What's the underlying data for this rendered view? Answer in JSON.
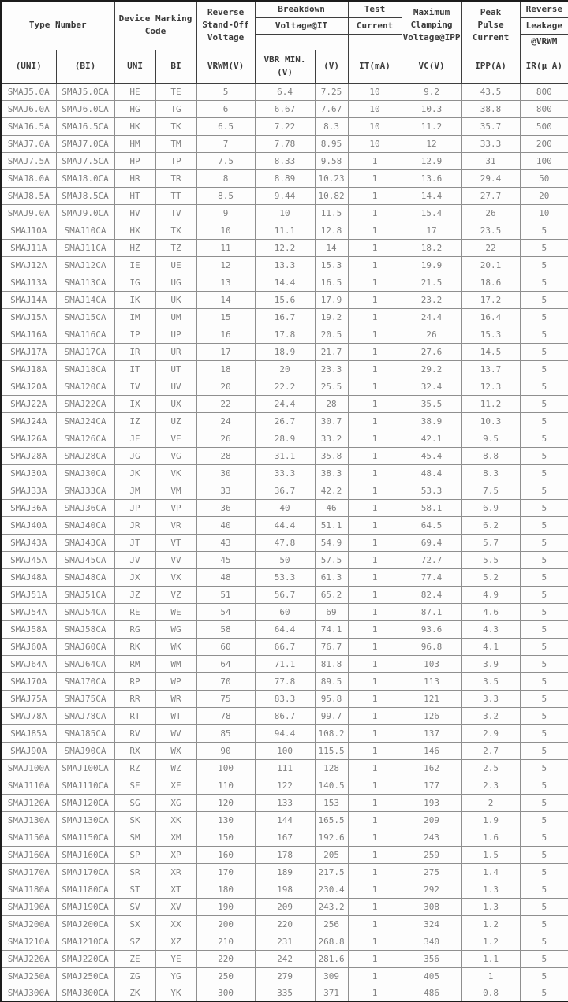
{
  "colors": {
    "frame": "#1c1c1c",
    "header_grid": "#3e3e3e",
    "data_grid": "#8f8f8f",
    "header_text": "#3a3a3a",
    "data_text": "#7f7f7f",
    "background": "#fdfdfd"
  },
  "header": {
    "type_number": "Type Number",
    "device_marking_code": "Device Marking\nCode",
    "reverse_standoff": "Reverse\nStand-Off\nVoltage",
    "breakdown": "Breakdown",
    "voltage_at_it": "Voltage@IT",
    "test": "Test",
    "current": "Current",
    "max_clamping": "Maximum\nClamping\nVoltage@IPP",
    "peak_pulse": "Peak\nPulse\nCurrent",
    "reverse": "Reverse",
    "leakage": "Leakage",
    "at_vrwm": "@VRWM",
    "sub": [
      "(UNI)",
      "(BI)",
      "UNI",
      "BI",
      "VRWM(V)",
      "VBR MIN.\n(V)",
      "(V)",
      "IT(mA)",
      "VC(V)",
      "IPP(A)",
      "IR(μ A)"
    ]
  },
  "table": {
    "col_keys": [
      "type-uni",
      "type-bi",
      "marking-uni",
      "marking-bi",
      "vrwm",
      "vbr-min",
      "vbr-max",
      "it",
      "vc",
      "ipp",
      "ir"
    ],
    "rows": [
      [
        "SMAJ5.0A",
        "SMAJ5.0CA",
        "HE",
        "TE",
        "5",
        "6.4",
        "7.25",
        "10",
        "9.2",
        "43.5",
        "800"
      ],
      [
        "SMAJ6.0A",
        "SMAJ6.0CA",
        "HG",
        "TG",
        "6",
        "6.67",
        "7.67",
        "10",
        "10.3",
        "38.8",
        "800"
      ],
      [
        "SMAJ6.5A",
        "SMAJ6.5CA",
        "HK",
        "TK",
        "6.5",
        "7.22",
        "8.3",
        "10",
        "11.2",
        "35.7",
        "500"
      ],
      [
        "SMAJ7.0A",
        "SMAJ7.0CA",
        "HM",
        "TM",
        "7",
        "7.78",
        "8.95",
        "10",
        "12",
        "33.3",
        "200"
      ],
      [
        "SMAJ7.5A",
        "SMAJ7.5CA",
        "HP",
        "TP",
        "7.5",
        "8.33",
        "9.58",
        "1",
        "12.9",
        "31",
        "100"
      ],
      [
        "SMAJ8.0A",
        "SMAJ8.0CA",
        "HR",
        "TR",
        "8",
        "8.89",
        "10.23",
        "1",
        "13.6",
        "29.4",
        "50"
      ],
      [
        "SMAJ8.5A",
        "SMAJ8.5CA",
        "HT",
        "TT",
        "8.5",
        "9.44",
        "10.82",
        "1",
        "14.4",
        "27.7",
        "20"
      ],
      [
        "SMAJ9.0A",
        "SMAJ9.0CA",
        "HV",
        "TV",
        "9",
        "10",
        "11.5",
        "1",
        "15.4",
        "26",
        "10"
      ],
      [
        "SMAJ10A",
        "SMAJ10CA",
        "HX",
        "TX",
        "10",
        "11.1",
        "12.8",
        "1",
        "17",
        "23.5",
        "5"
      ],
      [
        "SMAJ11A",
        "SMAJ11CA",
        "HZ",
        "TZ",
        "11",
        "12.2",
        "14",
        "1",
        "18.2",
        "22",
        "5"
      ],
      [
        "SMAJ12A",
        "SMAJ12CA",
        "IE",
        "UE",
        "12",
        "13.3",
        "15.3",
        "1",
        "19.9",
        "20.1",
        "5"
      ],
      [
        "SMAJ13A",
        "SMAJ13CA",
        "IG",
        "UG",
        "13",
        "14.4",
        "16.5",
        "1",
        "21.5",
        "18.6",
        "5"
      ],
      [
        "SMAJ14A",
        "SMAJ14CA",
        "IK",
        "UK",
        "14",
        "15.6",
        "17.9",
        "1",
        "23.2",
        "17.2",
        "5"
      ],
      [
        "SMAJ15A",
        "SMAJ15CA",
        "IM",
        "UM",
        "15",
        "16.7",
        "19.2",
        "1",
        "24.4",
        "16.4",
        "5"
      ],
      [
        "SMAJ16A",
        "SMAJ16CA",
        "IP",
        "UP",
        "16",
        "17.8",
        "20.5",
        "1",
        "26",
        "15.3",
        "5"
      ],
      [
        "SMAJ17A",
        "SMAJ17CA",
        "IR",
        "UR",
        "17",
        "18.9",
        "21.7",
        "1",
        "27.6",
        "14.5",
        "5"
      ],
      [
        "SMAJ18A",
        "SMAJ18CA",
        "IT",
        "UT",
        "18",
        "20",
        "23.3",
        "1",
        "29.2",
        "13.7",
        "5"
      ],
      [
        "SMAJ20A",
        "SMAJ20CA",
        "IV",
        "UV",
        "20",
        "22.2",
        "25.5",
        "1",
        "32.4",
        "12.3",
        "5"
      ],
      [
        "SMAJ22A",
        "SMAJ22CA",
        "IX",
        "UX",
        "22",
        "24.4",
        "28",
        "1",
        "35.5",
        "11.2",
        "5"
      ],
      [
        "SMAJ24A",
        "SMAJ24CA",
        "IZ",
        "UZ",
        "24",
        "26.7",
        "30.7",
        "1",
        "38.9",
        "10.3",
        "5"
      ],
      [
        "SMAJ26A",
        "SMAJ26CA",
        "JE",
        "VE",
        "26",
        "28.9",
        "33.2",
        "1",
        "42.1",
        "9.5",
        "5"
      ],
      [
        "SMAJ28A",
        "SMAJ28CA",
        "JG",
        "VG",
        "28",
        "31.1",
        "35.8",
        "1",
        "45.4",
        "8.8",
        "5"
      ],
      [
        "SMAJ30A",
        "SMAJ30CA",
        "JK",
        "VK",
        "30",
        "33.3",
        "38.3",
        "1",
        "48.4",
        "8.3",
        "5"
      ],
      [
        "SMAJ33A",
        "SMAJ33CA",
        "JM",
        "VM",
        "33",
        "36.7",
        "42.2",
        "1",
        "53.3",
        "7.5",
        "5"
      ],
      [
        "SMAJ36A",
        "SMAJ36CA",
        "JP",
        "VP",
        "36",
        "40",
        "46",
        "1",
        "58.1",
        "6.9",
        "5"
      ],
      [
        "SMAJ40A",
        "SMAJ40CA",
        "JR",
        "VR",
        "40",
        "44.4",
        "51.1",
        "1",
        "64.5",
        "6.2",
        "5"
      ],
      [
        "SMAJ43A",
        "SMAJ43CA",
        "JT",
        "VT",
        "43",
        "47.8",
        "54.9",
        "1",
        "69.4",
        "5.7",
        "5"
      ],
      [
        "SMAJ45A",
        "SMAJ45CA",
        "JV",
        "VV",
        "45",
        "50",
        "57.5",
        "1",
        "72.7",
        "5.5",
        "5"
      ],
      [
        "SMAJ48A",
        "SMAJ48CA",
        "JX",
        "VX",
        "48",
        "53.3",
        "61.3",
        "1",
        "77.4",
        "5.2",
        "5"
      ],
      [
        "SMAJ51A",
        "SMAJ51CA",
        "JZ",
        "VZ",
        "51",
        "56.7",
        "65.2",
        "1",
        "82.4",
        "4.9",
        "5"
      ],
      [
        "SMAJ54A",
        "SMAJ54CA",
        "RE",
        "WE",
        "54",
        "60",
        "69",
        "1",
        "87.1",
        "4.6",
        "5"
      ],
      [
        "SMAJ58A",
        "SMAJ58CA",
        "RG",
        "WG",
        "58",
        "64.4",
        "74.1",
        "1",
        "93.6",
        "4.3",
        "5"
      ],
      [
        "SMAJ60A",
        "SMAJ60CA",
        "RK",
        "WK",
        "60",
        "66.7",
        "76.7",
        "1",
        "96.8",
        "4.1",
        "5"
      ],
      [
        "SMAJ64A",
        "SMAJ64CA",
        "RM",
        "WM",
        "64",
        "71.1",
        "81.8",
        "1",
        "103",
        "3.9",
        "5"
      ],
      [
        "SMAJ70A",
        "SMAJ70CA",
        "RP",
        "WP",
        "70",
        "77.8",
        "89.5",
        "1",
        "113",
        "3.5",
        "5"
      ],
      [
        "SMAJ75A",
        "SMAJ75CA",
        "RR",
        "WR",
        "75",
        "83.3",
        "95.8",
        "1",
        "121",
        "3.3",
        "5"
      ],
      [
        "SMAJ78A",
        "SMAJ78CA",
        "RT",
        "WT",
        "78",
        "86.7",
        "99.7",
        "1",
        "126",
        "3.2",
        "5"
      ],
      [
        "SMAJ85A",
        "SMAJ85CA",
        "RV",
        "WV",
        "85",
        "94.4",
        "108.2",
        "1",
        "137",
        "2.9",
        "5"
      ],
      [
        "SMAJ90A",
        "SMAJ90CA",
        "RX",
        "WX",
        "90",
        "100",
        "115.5",
        "1",
        "146",
        "2.7",
        "5"
      ],
      [
        "SMAJ100A",
        "SMAJ100CA",
        "RZ",
        "WZ",
        "100",
        "111",
        "128",
        "1",
        "162",
        "2.5",
        "5"
      ],
      [
        "SMAJ110A",
        "SMAJ110CA",
        "SE",
        "XE",
        "110",
        "122",
        "140.5",
        "1",
        "177",
        "2.3",
        "5"
      ],
      [
        "SMAJ120A",
        "SMAJ120CA",
        "SG",
        "XG",
        "120",
        "133",
        "153",
        "1",
        "193",
        "2",
        "5"
      ],
      [
        "SMAJ130A",
        "SMAJ130CA",
        "SK",
        "XK",
        "130",
        "144",
        "165.5",
        "1",
        "209",
        "1.9",
        "5"
      ],
      [
        "SMAJ150A",
        "SMAJ150CA",
        "SM",
        "XM",
        "150",
        "167",
        "192.6",
        "1",
        "243",
        "1.6",
        "5"
      ],
      [
        "SMAJ160A",
        "SMAJ160CA",
        "SP",
        "XP",
        "160",
        "178",
        "205",
        "1",
        "259",
        "1.5",
        "5"
      ],
      [
        "SMAJ170A",
        "SMAJ170CA",
        "SR",
        "XR",
        "170",
        "189",
        "217.5",
        "1",
        "275",
        "1.4",
        "5"
      ],
      [
        "SMAJ180A",
        "SMAJ180CA",
        "ST",
        "XT",
        "180",
        "198",
        "230.4",
        "1",
        "292",
        "1.3",
        "5"
      ],
      [
        "SMAJ190A",
        "SMAJ190CA",
        "SV",
        "XV",
        "190",
        "209",
        "243.2",
        "1",
        "308",
        "1.3",
        "5"
      ],
      [
        "SMAJ200A",
        "SMAJ200CA",
        "SX",
        "XX",
        "200",
        "220",
        "256",
        "1",
        "324",
        "1.2",
        "5"
      ],
      [
        "SMAJ210A",
        "SMAJ210CA",
        "SZ",
        "XZ",
        "210",
        "231",
        "268.8",
        "1",
        "340",
        "1.2",
        "5"
      ],
      [
        "SMAJ220A",
        "SMAJ220CA",
        "ZE",
        "YE",
        "220",
        "242",
        "281.6",
        "1",
        "356",
        "1.1",
        "5"
      ],
      [
        "SMAJ250A",
        "SMAJ250CA",
        "ZG",
        "YG",
        "250",
        "279",
        "309",
        "1",
        "405",
        "1",
        "5"
      ],
      [
        "SMAJ300A",
        "SMAJ300CA",
        "ZK",
        "YK",
        "300",
        "335",
        "371",
        "1",
        "486",
        "0.8",
        "5"
      ]
    ]
  }
}
